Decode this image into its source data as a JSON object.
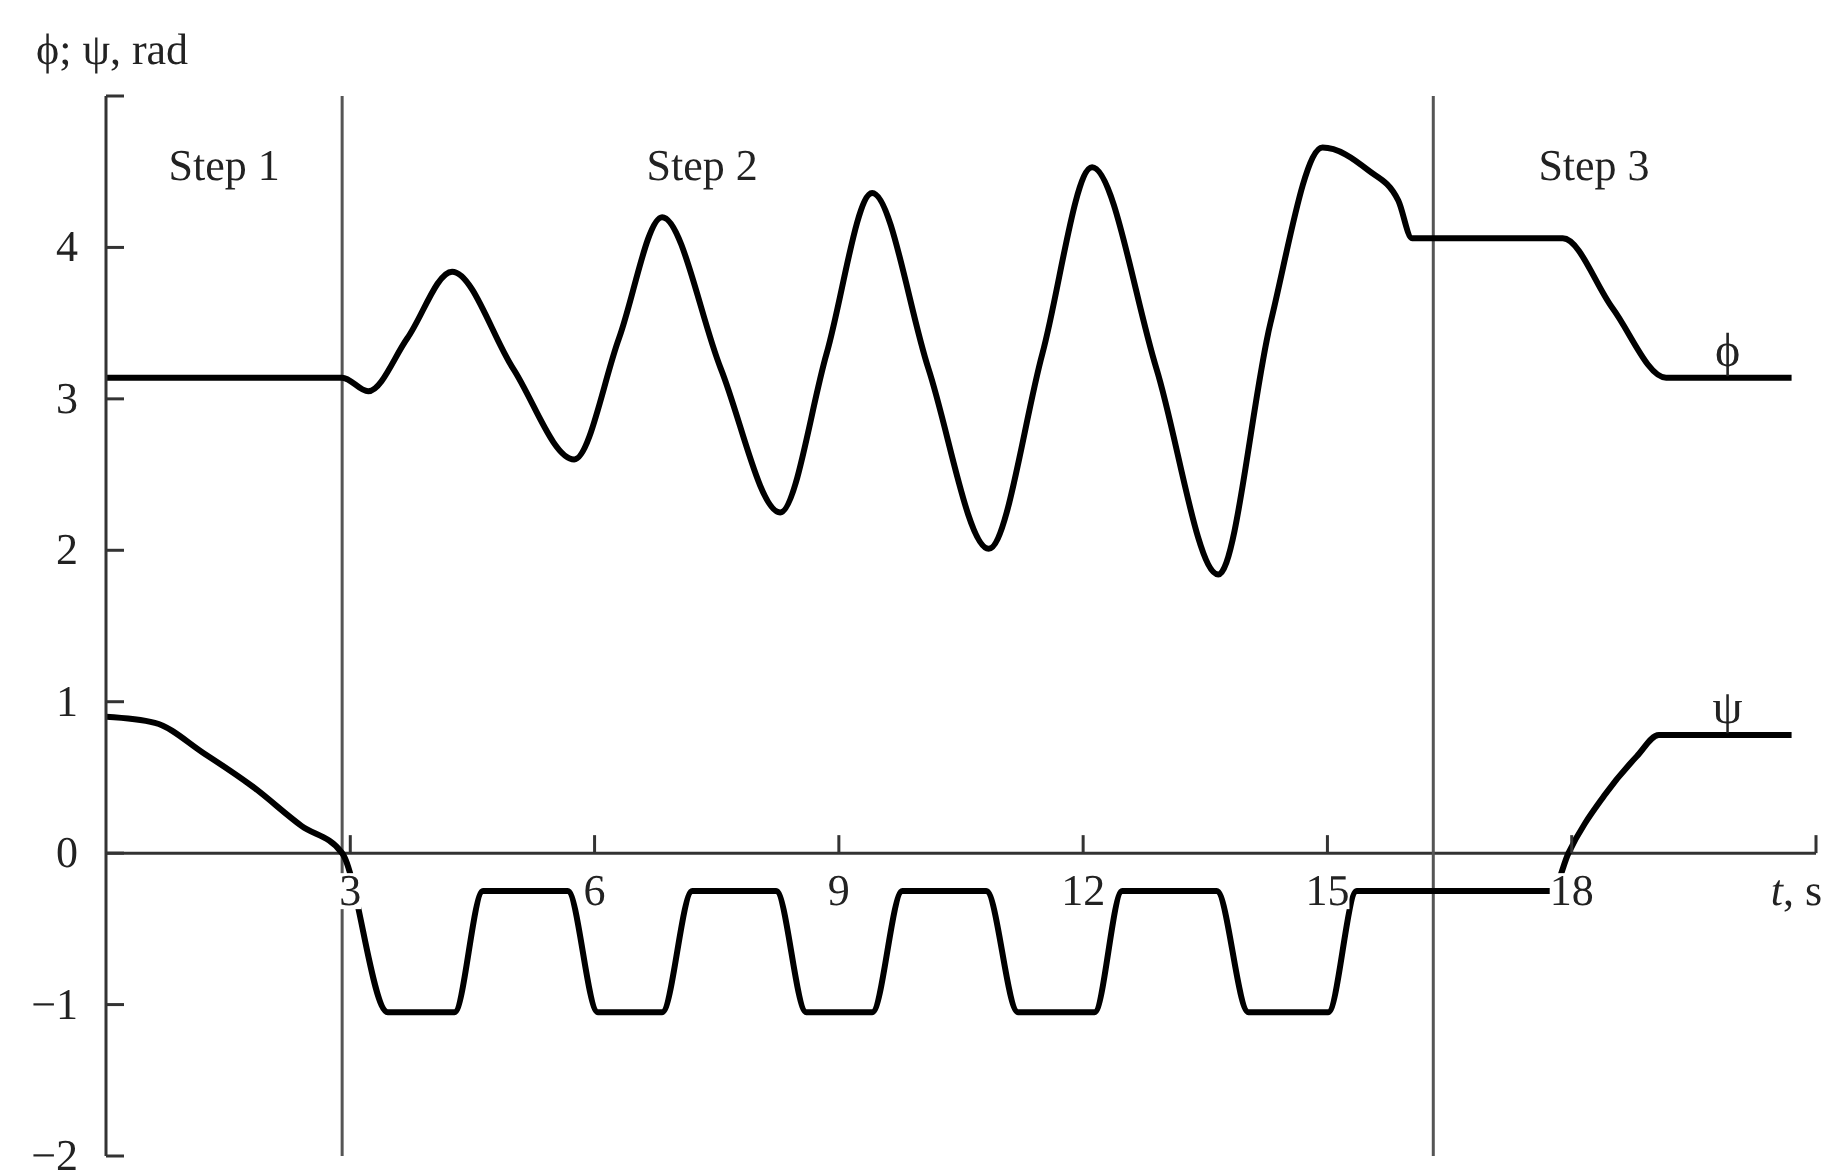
{
  "chart_data": {
    "type": "line",
    "xlabel": "t, s",
    "ylabel": "ϕ; ψ, rad",
    "annotations": [
      "Step 1",
      "Step 2",
      "Step 3"
    ],
    "xlim": [
      0,
      21
    ],
    "xticks": [
      3,
      6,
      9,
      12,
      15,
      18,
      {
        "value": 21,
        "label": null
      }
    ],
    "ylim": [
      -2,
      5
    ],
    "yticks": [
      -2,
      -1,
      0,
      1,
      2,
      3,
      4,
      {
        "value": 5,
        "label": null
      }
    ],
    "ref_lines": [
      {
        "axis": "x",
        "value": 2.9,
        "color": "#555555"
      },
      {
        "axis": "x",
        "value": 16.3,
        "color": "#555555"
      }
    ],
    "marker": "none",
    "line_style": "solid",
    "series": [
      {
        "name": "ϕ",
        "color": "#000000",
        "x": [
          0,
          2.9,
          3.22,
          3.7,
          4.25,
          5.0,
          5.75,
          6.3,
          6.83,
          7.55,
          8.28,
          8.85,
          9.41,
          10.1,
          10.84,
          11.5,
          12.11,
          12.9,
          13.66,
          14.3,
          14.94,
          15.5,
          15.87,
          16.04,
          17.89,
          18.5,
          19.16,
          20.7
        ],
        "values": [
          3.14,
          3.14,
          3.05,
          3.4,
          3.84,
          3.2,
          2.6,
          3.4,
          4.2,
          3.2,
          2.25,
          3.3,
          4.36,
          3.2,
          2.01,
          3.3,
          4.53,
          3.2,
          1.84,
          3.5,
          4.66,
          4.51,
          4.31,
          4.06,
          4.06,
          3.6,
          3.14,
          3.14
        ]
      },
      {
        "name": "ψ",
        "color": "#000000",
        "x": [
          0,
          0.6,
          1.2,
          1.8,
          2.4,
          2.9,
          3.46,
          4.28,
          4.63,
          5.67,
          6.04,
          6.83,
          7.2,
          8.23,
          8.6,
          9.41,
          9.78,
          10.81,
          11.2,
          12.14,
          12.48,
          13.64,
          14.03,
          15.01,
          15.36,
          17.76,
          17.96,
          18.4,
          18.8,
          19.07,
          20.7
        ],
        "values": [
          0.9,
          0.86,
          0.66,
          0.44,
          0.18,
          0,
          -1.05,
          -1.05,
          -0.25,
          -0.25,
          -1.05,
          -1.05,
          -0.25,
          -0.25,
          -1.05,
          -1.05,
          -0.25,
          -0.25,
          -1.05,
          -1.05,
          -0.25,
          -0.25,
          -1.05,
          -1.05,
          -0.25,
          -0.25,
          0,
          0.38,
          0.64,
          0.78,
          0.78
        ]
      }
    ]
  }
}
